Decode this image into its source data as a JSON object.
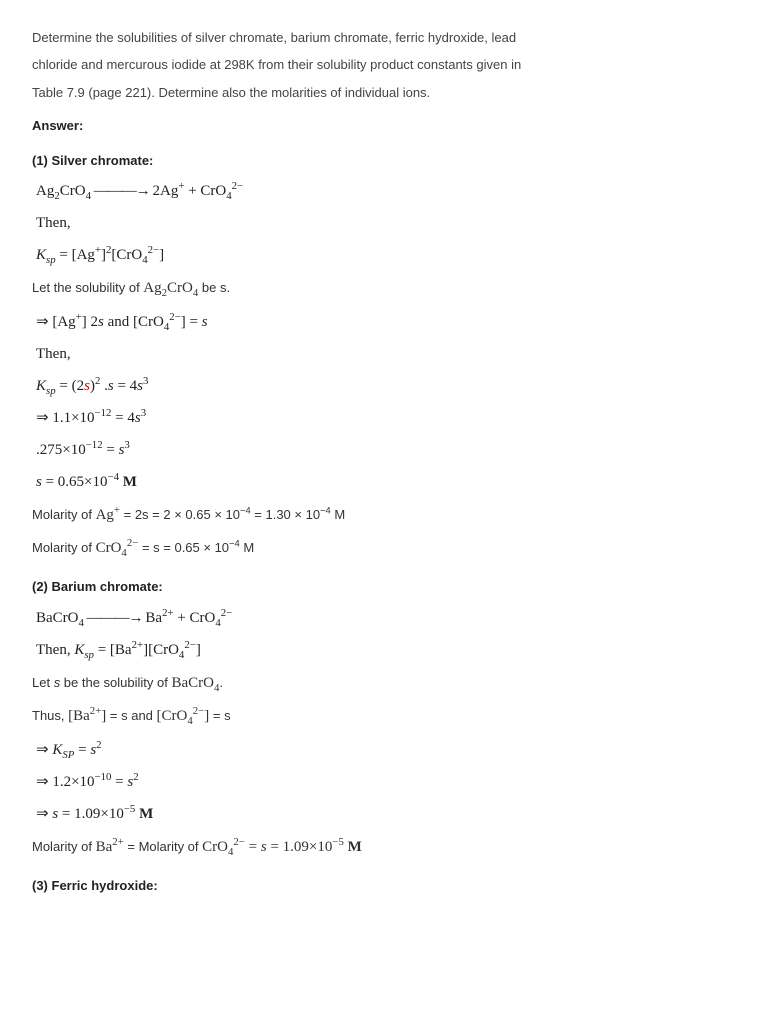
{
  "question": {
    "line1": "Determine the solubilities of silver chromate, barium chromate, ferric hydroxide, lead",
    "line2": "chloride and mercurous iodide at 298K from their solubility product constants given in",
    "line3": "Table 7.9 (page 221). Determine also the molarities of individual ions."
  },
  "answer_label": "Answer:",
  "section1": {
    "title": "(1) Silver chromate:",
    "eq_dissoc_lhs": "Ag",
    "eq_dissoc_sub1": "2",
    "eq_dissoc_mid": "CrO",
    "eq_dissoc_sub2": "4",
    "eq_dissoc_arrow": " ———→ ",
    "eq_dissoc_rhs1": "2Ag",
    "eq_dissoc_sup1": "+",
    "eq_dissoc_plus": " + CrO",
    "eq_dissoc_sub3": "4",
    "eq_dissoc_sup2": "2−",
    "then": "Then,",
    "ksp_lhs": "K",
    "ksp_sub": "sp",
    "ksp_eq": " = ",
    "ksp_br1": "[Ag",
    "ksp_sup_plus": "+",
    "ksp_br1_close": "]",
    "ksp_pow2": "2",
    "ksp_br2": "[CrO",
    "ksp_sub4": "4",
    "ksp_sup2m": "2−",
    "ksp_br2_close": "]",
    "let_prefix": "Let the solubility of ",
    "let_formula": "Ag",
    "let_sub1": "2",
    "let_formula2": "CrO",
    "let_sub2": "4",
    "let_suffix": " be s.",
    "imp1_a": "⇒ [Ag",
    "imp1_sup": "+",
    "imp1_b": "] 2",
    "imp1_s": "s",
    "imp1_and": " and [CrO",
    "imp1_sub": "4",
    "imp1_sup2": "2−",
    "imp1_c": "] = ",
    "imp1_s2": "s",
    "then2": "Then,",
    "ksp2_a": "K",
    "ksp2_sub": "sp",
    "ksp2_b": " = (2",
    "ksp2_s": "s",
    "ksp2_c": ")",
    "ksp2_pow": "2",
    "ksp2_d": " .",
    "ksp2_s2": "s",
    "ksp2_e": " = 4",
    "ksp2_s3": "s",
    "ksp2_pow3": "3",
    "imp2_a": "⇒ 1.1×10",
    "imp2_pow": "−12",
    "imp2_b": " = 4",
    "imp2_s": "s",
    "imp2_pow3": "3",
    "line_a": ".275×10",
    "line_pow": "−12",
    "line_b": " = ",
    "line_s": "s",
    "line_pow3": "3",
    "s_res_a": "s",
    "s_res_b": " = 0.65×10",
    "s_res_pow": "−4",
    "s_res_unit": " M",
    "mol_ag_prefix": "Molarity of ",
    "mol_ag_sym": "Ag",
    "mol_ag_sup": "+",
    "mol_ag_val": " = 2s = 2 × 0.65 × 10",
    "mol_ag_pow": "−4",
    "mol_ag_val2": " = 1.30 × 10",
    "mol_ag_pow2": "−4",
    "mol_ag_unit": " M",
    "mol_cr_prefix": "Molarity of ",
    "mol_cr_sym": "CrO",
    "mol_cr_sub": "4",
    "mol_cr_sup": "2−",
    "mol_cr_val": " = s = 0.65 × 10",
    "mol_cr_pow": "−4",
    "mol_cr_unit": " M"
  },
  "section2": {
    "title": "(2) Barium chromate:",
    "eq_a": "BaCrO",
    "eq_sub": "4",
    "eq_arrow": " ———→ ",
    "eq_b": "Ba",
    "eq_sup": "2+",
    "eq_plus": " + CrO",
    "eq_sub2": "4",
    "eq_sup2": "2−",
    "then_a": "Then, ",
    "then_k": "K",
    "then_sub": "sp",
    "then_eq": " = [Ba",
    "then_sup": "2+",
    "then_b": "][CrO",
    "then_sub2": "4",
    "then_sup2": "2−",
    "then_c": "]",
    "let_prefix": "Let ",
    "let_s": "s",
    "let_mid": " be the solubility of ",
    "let_formula": "BaCrO",
    "let_sub": "4",
    "let_dot": ".",
    "thus_prefix": "Thus, ",
    "thus_a": "[Ba",
    "thus_sup": "2+",
    "thus_b": "]",
    "thus_eq": " = s and ",
    "thus_c": "[CrO",
    "thus_sub": "4",
    "thus_sup2": "2−",
    "thus_d": "]",
    "thus_eq2": " = s",
    "imp1_a": "⇒ ",
    "imp1_k": "K",
    "imp1_sub": "SP",
    "imp1_b": " = ",
    "imp1_s": "s",
    "imp1_pow": "2",
    "imp2_a": "⇒ 1.2×10",
    "imp2_pow": "−10",
    "imp2_b": " = ",
    "imp2_s": "s",
    "imp2_pow2": "2",
    "imp3_a": "⇒ ",
    "imp3_s": "s",
    "imp3_b": " = 1.09×10",
    "imp3_pow": "−5",
    "imp3_unit": " M",
    "mol_prefix": "Molarity of ",
    "mol_ba": "Ba",
    "mol_ba_sup": "2+",
    "mol_mid": " = Molarity of ",
    "mol_cr": "CrO",
    "mol_cr_sub": "4",
    "mol_cr_sup": "2−",
    "mol_eq": " = ",
    "mol_s": "s",
    "mol_val": " = 1.09×10",
    "mol_pow": "−5",
    "mol_unit": " M"
  },
  "section3": {
    "title": "(3) Ferric hydroxide:"
  }
}
